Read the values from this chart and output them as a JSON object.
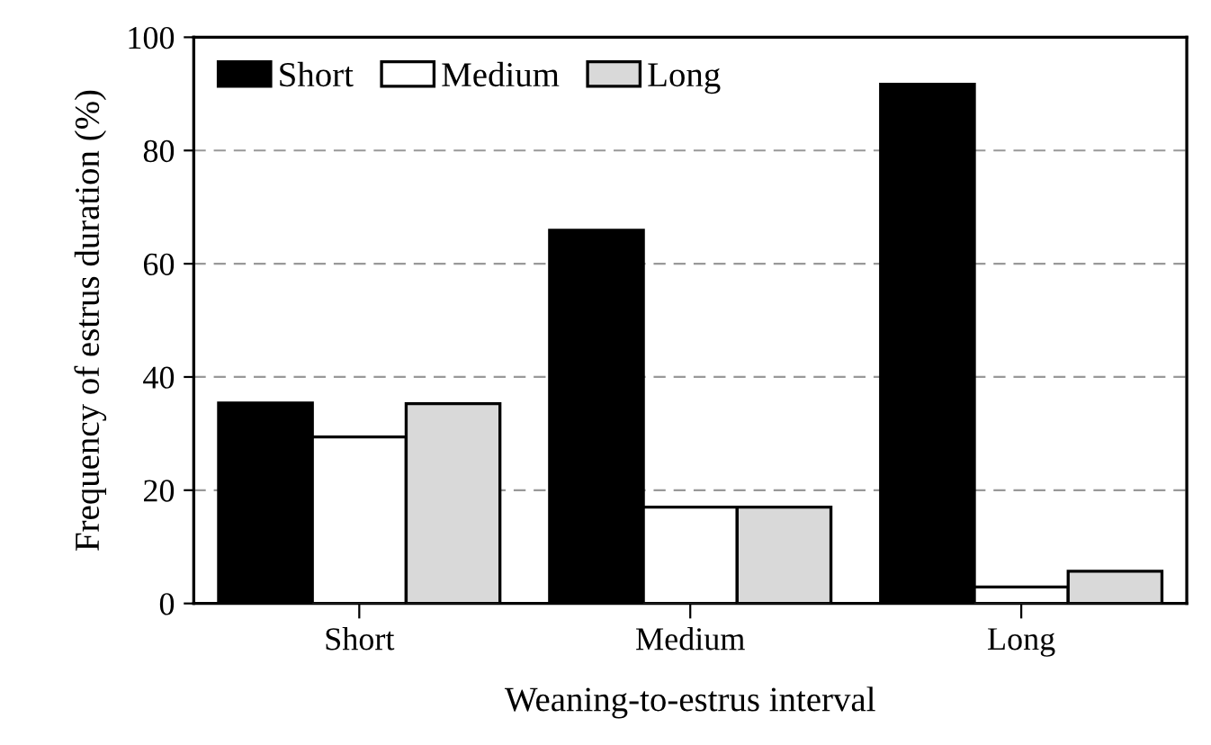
{
  "chart_data": {
    "type": "bar",
    "xlabel": "Weaning-to-estrus interval",
    "ylabel": "Frequency of estrus duration (%)",
    "categories": [
      "Short",
      "Medium",
      "Long"
    ],
    "series": [
      {
        "name": "Short",
        "color": "#000000",
        "values": [
          35.4,
          65.9,
          91.7
        ]
      },
      {
        "name": "Medium",
        "color": "#ffffff",
        "values": [
          29.4,
          17.0,
          2.9
        ]
      },
      {
        "name": "Long",
        "color": "#d9d9d9",
        "values": [
          35.3,
          17.0,
          5.7
        ]
      }
    ],
    "ylim": [
      0,
      100
    ],
    "yticks": [
      0,
      20,
      40,
      60,
      80,
      100
    ],
    "grid": "y",
    "legend": "top left"
  }
}
